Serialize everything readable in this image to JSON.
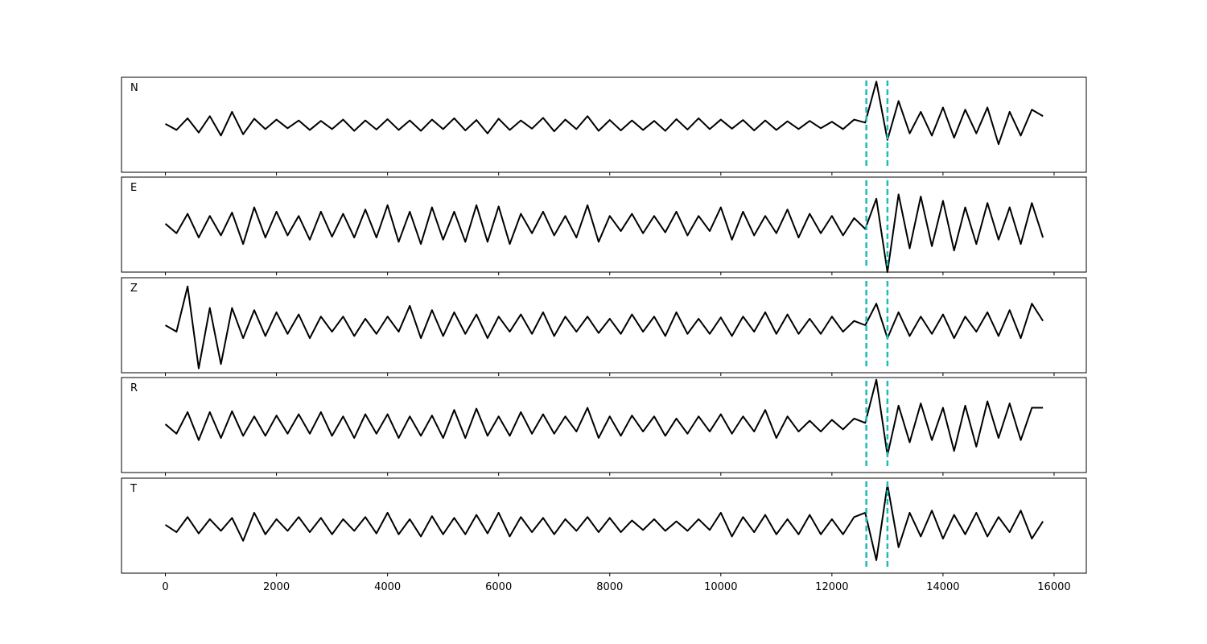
{
  "chart_data": {
    "type": "line",
    "x": [
      0,
      200,
      400,
      600,
      800,
      1000,
      1200,
      1400,
      1600,
      1800,
      2000,
      2200,
      2400,
      2600,
      2800,
      3000,
      3200,
      3400,
      3600,
      3800,
      4000,
      4200,
      4400,
      4600,
      4800,
      5000,
      5200,
      5400,
      5600,
      5800,
      6000,
      6200,
      6400,
      6600,
      6800,
      7000,
      7200,
      7400,
      7600,
      7800,
      8000,
      8200,
      8400,
      8600,
      8800,
      9000,
      9200,
      9400,
      9600,
      9800,
      10000,
      10200,
      10400,
      10600,
      10800,
      11000,
      11200,
      11400,
      11600,
      11800,
      12000,
      12200,
      12400,
      12600,
      12800,
      13000,
      13200,
      13400,
      13600,
      13800,
      14000,
      14200,
      14400,
      14600,
      14800,
      15000,
      15200,
      15400,
      15600,
      15800
    ],
    "series": [
      {
        "name": "N",
        "color": "#000000",
        "values": [
          0.02,
          -0.12,
          0.15,
          -0.18,
          0.2,
          -0.25,
          0.3,
          -0.22,
          0.14,
          -0.1,
          0.12,
          -0.08,
          0.1,
          -0.12,
          0.09,
          -0.1,
          0.12,
          -0.14,
          0.1,
          -0.11,
          0.13,
          -0.12,
          0.1,
          -0.14,
          0.12,
          -0.1,
          0.15,
          -0.13,
          0.11,
          -0.2,
          0.14,
          -0.12,
          0.1,
          -0.09,
          0.16,
          -0.15,
          0.12,
          -0.1,
          0.2,
          -0.14,
          0.11,
          -0.13,
          0.1,
          -0.12,
          0.09,
          -0.14,
          0.13,
          -0.11,
          0.15,
          -0.1,
          0.12,
          -0.09,
          0.11,
          -0.13,
          0.1,
          -0.12,
          0.08,
          -0.1,
          0.09,
          -0.08,
          0.07,
          -0.1,
          0.12,
          0.05,
          1.0,
          -0.35,
          0.55,
          -0.2,
          0.3,
          -0.25,
          0.4,
          -0.3,
          0.35,
          -0.2,
          0.4,
          -0.45,
          0.3,
          -0.25,
          0.35,
          0.2
        ]
      },
      {
        "name": "E",
        "color": "#000000",
        "values": [
          0.02,
          -0.2,
          0.25,
          -0.3,
          0.2,
          -0.25,
          0.28,
          -0.45,
          0.4,
          -0.3,
          0.3,
          -0.25,
          0.2,
          -0.35,
          0.3,
          -0.28,
          0.25,
          -0.3,
          0.35,
          -0.3,
          0.45,
          -0.4,
          0.3,
          -0.45,
          0.4,
          -0.35,
          0.3,
          -0.4,
          0.45,
          -0.4,
          0.42,
          -0.45,
          0.25,
          -0.2,
          0.3,
          -0.25,
          0.2,
          -0.3,
          0.45,
          -0.4,
          0.2,
          -0.15,
          0.25,
          -0.2,
          0.2,
          -0.18,
          0.3,
          -0.25,
          0.2,
          -0.15,
          0.4,
          -0.35,
          0.3,
          -0.25,
          0.2,
          -0.2,
          0.35,
          -0.3,
          0.25,
          -0.2,
          0.2,
          -0.25,
          0.15,
          -0.1,
          0.6,
          -1.1,
          0.7,
          -0.55,
          0.65,
          -0.5,
          0.55,
          -0.6,
          0.4,
          -0.45,
          0.5,
          -0.35,
          0.4,
          -0.45,
          0.5,
          -0.3
        ]
      },
      {
        "name": "Z",
        "color": "#000000",
        "values": [
          0.0,
          -0.15,
          0.9,
          -1.0,
          0.4,
          -0.9,
          0.4,
          -0.3,
          0.35,
          -0.25,
          0.3,
          -0.2,
          0.25,
          -0.3,
          0.2,
          -0.15,
          0.2,
          -0.25,
          0.15,
          -0.2,
          0.2,
          -0.15,
          0.45,
          -0.3,
          0.35,
          -0.25,
          0.3,
          -0.2,
          0.25,
          -0.3,
          0.2,
          -0.15,
          0.25,
          -0.2,
          0.3,
          -0.25,
          0.2,
          -0.15,
          0.2,
          -0.18,
          0.15,
          -0.2,
          0.25,
          -0.15,
          0.2,
          -0.25,
          0.3,
          -0.2,
          0.15,
          -0.2,
          0.18,
          -0.25,
          0.2,
          -0.15,
          0.3,
          -0.2,
          0.25,
          -0.2,
          0.15,
          -0.2,
          0.2,
          -0.15,
          0.1,
          0.0,
          0.5,
          -0.3,
          0.3,
          -0.25,
          0.2,
          -0.2,
          0.25,
          -0.3,
          0.2,
          -0.15,
          0.3,
          -0.25,
          0.35,
          -0.3,
          0.5,
          0.1
        ]
      },
      {
        "name": "R",
        "color": "#000000",
        "values": [
          0.02,
          -0.2,
          0.3,
          -0.35,
          0.3,
          -0.3,
          0.32,
          -0.25,
          0.2,
          -0.25,
          0.22,
          -0.2,
          0.25,
          -0.2,
          0.3,
          -0.25,
          0.2,
          -0.3,
          0.25,
          -0.2,
          0.25,
          -0.3,
          0.2,
          -0.25,
          0.22,
          -0.3,
          0.35,
          -0.3,
          0.38,
          -0.25,
          0.2,
          -0.25,
          0.3,
          -0.2,
          0.25,
          -0.2,
          0.2,
          -0.15,
          0.4,
          -0.3,
          0.2,
          -0.25,
          0.22,
          -0.15,
          0.2,
          -0.25,
          0.15,
          -0.2,
          0.2,
          -0.15,
          0.25,
          -0.2,
          0.2,
          -0.15,
          0.35,
          -0.3,
          0.2,
          -0.15,
          0.1,
          -0.15,
          0.12,
          -0.1,
          0.15,
          0.05,
          1.05,
          -0.7,
          0.45,
          -0.4,
          0.5,
          -0.35,
          0.4,
          -0.6,
          0.45,
          -0.5,
          0.55,
          -0.3,
          0.5,
          -0.35,
          0.4,
          0.4
        ]
      },
      {
        "name": "T",
        "color": "#000000",
        "values": [
          0.02,
          -0.15,
          0.2,
          -0.18,
          0.15,
          -0.12,
          0.18,
          -0.35,
          0.3,
          -0.2,
          0.15,
          -0.12,
          0.2,
          -0.15,
          0.18,
          -0.2,
          0.15,
          -0.12,
          0.2,
          -0.18,
          0.3,
          -0.2,
          0.15,
          -0.25,
          0.22,
          -0.2,
          0.18,
          -0.2,
          0.25,
          -0.18,
          0.3,
          -0.25,
          0.2,
          -0.15,
          0.18,
          -0.2,
          0.15,
          -0.12,
          0.2,
          -0.15,
          0.18,
          -0.15,
          0.12,
          -0.1,
          0.15,
          -0.12,
          0.1,
          -0.12,
          0.15,
          -0.1,
          0.3,
          -0.25,
          0.2,
          -0.15,
          0.25,
          -0.2,
          0.15,
          -0.2,
          0.25,
          -0.2,
          0.15,
          -0.2,
          0.2,
          0.3,
          -0.8,
          0.95,
          -0.5,
          0.3,
          -0.25,
          0.35,
          -0.3,
          0.25,
          -0.2,
          0.3,
          -0.25,
          0.2,
          -0.15,
          0.35,
          -0.3,
          0.1
        ]
      }
    ],
    "markers": [
      12620,
      13000
    ],
    "marker_color": "#1bbcbc",
    "xlim": [
      -790,
      16580
    ],
    "xticks": [
      0,
      2000,
      4000,
      6000,
      8000,
      10000,
      12000,
      14000,
      16000
    ],
    "ylim": [
      -1.1,
      1.1
    ]
  }
}
